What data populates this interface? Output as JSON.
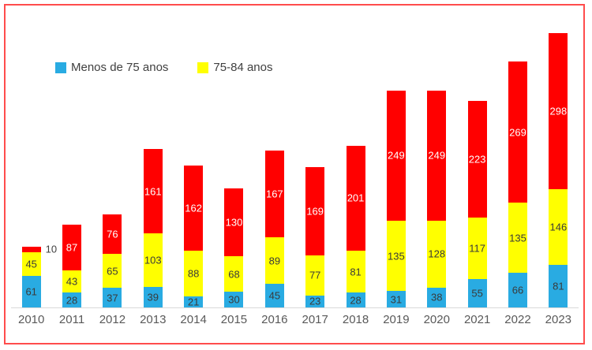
{
  "chart_data": {
    "type": "bar",
    "stacked": true,
    "title": "",
    "xlabel": "",
    "ylabel": "",
    "y_axis_visible": false,
    "grid": false,
    "legend_position": "top-left",
    "legend": [
      "Menos de 75 anos",
      "75-84 anos"
    ],
    "categories": [
      "2010",
      "2011",
      "2012",
      "2013",
      "2014",
      "2015",
      "2016",
      "2017",
      "2018",
      "2019",
      "2020",
      "2021",
      "2022",
      "2023"
    ],
    "series": [
      {
        "name": "Menos de 75 anos",
        "color": "#29ABE2",
        "label_color": "#3A3A3A",
        "values": [
          61,
          28,
          37,
          39,
          21,
          30,
          45,
          23,
          28,
          31,
          38,
          55,
          66,
          81
        ]
      },
      {
        "name": "75-84 anos",
        "color": "#FFFF00",
        "label_color": "#3A3A3A",
        "values": [
          45,
          43,
          65,
          103,
          88,
          68,
          89,
          77,
          81,
          135,
          128,
          117,
          135,
          146
        ]
      },
      {
        "name": "",
        "color": "#FF0000",
        "label_color": "#FFFFFF",
        "values": [
          10,
          87,
          76,
          161,
          162,
          130,
          167,
          169,
          201,
          249,
          249,
          223,
          269,
          298
        ]
      }
    ],
    "ylim": [
      0,
      525
    ]
  },
  "style": {
    "frame_border_color": "#FF4C4C",
    "axis_line_color": "#D9D9D9",
    "tick_label_color": "#595959",
    "legend_text_color": "#404040"
  }
}
